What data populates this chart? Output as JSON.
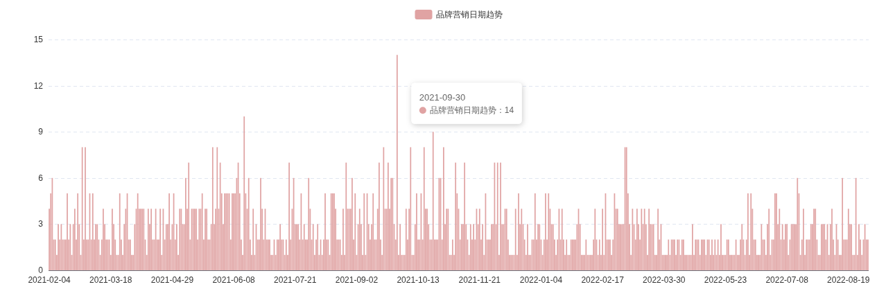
{
  "chart_data": {
    "type": "bar",
    "ylim": [
      0,
      15
    ],
    "yticks": [
      0,
      3,
      6,
      9,
      12,
      15
    ],
    "grid": "y",
    "legend": "top",
    "annotations": [
      "2021-09-30",
      "品牌营销日期趋势：14"
    ],
    "categories": [
      "2021-02-04",
      null,
      null,
      null,
      null,
      null,
      null,
      null,
      null,
      null,
      null,
      null,
      null,
      null,
      null,
      null,
      null,
      null,
      null,
      null,
      null,
      null,
      null,
      null,
      null,
      null,
      null,
      null,
      null,
      null,
      null,
      null,
      null,
      null,
      null,
      null,
      null,
      null,
      null,
      null,
      null,
      "2021-03-18",
      null,
      null,
      null,
      null,
      null,
      null,
      null,
      null,
      null,
      null,
      null,
      null,
      null,
      null,
      null,
      null,
      null,
      null,
      null,
      null,
      null,
      null,
      null,
      null,
      null,
      null,
      null,
      null,
      null,
      null,
      null,
      null,
      null,
      null,
      null,
      null,
      null,
      null,
      null,
      null,
      "2021-04-29",
      null,
      null,
      null,
      null,
      null,
      null,
      null,
      null,
      null,
      null,
      null,
      null,
      null,
      null,
      null,
      null,
      null,
      null,
      null,
      null,
      null,
      null,
      null,
      null,
      null,
      null,
      null,
      null,
      null,
      null,
      null,
      null,
      null,
      null,
      null,
      null,
      null,
      null,
      null,
      null,
      "2021-06-08",
      null,
      null,
      null,
      null,
      null,
      null,
      null,
      null,
      null,
      null,
      null,
      null,
      null,
      null,
      null,
      null,
      null,
      null,
      null,
      null,
      null,
      null,
      null,
      null,
      null,
      null,
      null,
      null,
      null,
      null,
      null,
      null,
      null,
      null,
      null,
      null,
      null,
      null,
      null,
      null,
      "2021-07-21",
      null,
      null,
      null,
      null,
      null,
      null,
      null,
      null,
      null,
      null,
      null,
      null,
      null,
      null,
      null,
      null,
      null,
      null,
      null,
      null,
      null,
      null,
      null,
      null,
      null,
      null,
      null,
      null,
      null,
      null,
      null,
      null,
      null,
      null,
      null,
      null,
      null,
      null,
      null,
      null,
      "2021-09-02",
      null,
      null,
      null,
      null,
      null,
      null,
      null,
      null,
      null,
      null,
      null,
      null,
      null,
      null,
      null,
      null,
      null,
      null,
      null,
      null,
      null,
      null,
      null,
      null,
      null,
      null,
      null,
      null,
      null,
      null,
      null,
      null,
      null,
      null,
      null,
      null,
      null,
      null,
      null,
      null,
      "2021-10-13",
      null,
      null,
      null,
      null,
      null,
      null,
      null,
      null,
      null,
      null,
      null,
      null,
      null,
      null,
      null,
      null,
      null,
      null,
      null,
      null,
      null,
      null,
      null,
      null,
      null,
      null,
      null,
      null,
      null,
      null,
      null,
      null,
      null,
      null,
      null,
      null,
      null,
      null,
      null,
      null,
      "2021-11-21",
      null,
      null,
      null,
      null,
      null,
      null,
      null,
      null,
      null,
      null,
      null,
      null,
      null,
      null,
      null,
      null,
      null,
      null,
      null,
      null,
      null,
      null,
      null,
      null,
      null,
      null,
      null,
      null,
      null,
      null,
      null,
      null,
      null,
      null,
      null,
      null,
      null,
      null,
      null,
      null,
      "2022-01-04",
      null,
      null,
      null,
      null,
      null,
      null,
      null,
      null,
      null,
      null,
      null,
      null,
      null,
      null,
      null,
      null,
      null,
      null,
      null,
      null,
      null,
      null,
      null,
      null,
      null,
      null,
      null,
      null,
      null,
      null,
      null,
      null,
      null,
      null,
      null,
      null,
      null,
      null,
      null,
      null,
      "2022-02-17",
      null,
      null,
      null,
      null,
      null,
      null,
      null,
      null,
      null,
      null,
      null,
      null,
      null,
      null,
      null,
      null,
      null,
      null,
      null,
      null,
      null,
      null,
      null,
      null,
      null,
      null,
      null,
      null,
      null,
      null,
      null,
      null,
      null,
      null,
      null,
      null,
      null,
      null,
      null,
      null,
      "2022-03-30",
      null,
      null,
      null,
      null,
      null,
      null,
      null,
      null,
      null,
      null,
      null,
      null,
      null,
      null,
      null,
      null,
      null,
      null,
      null,
      null,
      null,
      null,
      null,
      null,
      null,
      null,
      null,
      null,
      null,
      null,
      null,
      null,
      null,
      null,
      null,
      null,
      null,
      null,
      null,
      null,
      "2022-05-23",
      null,
      null,
      null,
      null,
      null,
      null,
      null,
      null,
      null,
      null,
      null,
      null,
      null,
      null,
      null,
      null,
      null,
      null,
      null,
      null,
      null,
      null,
      null,
      null,
      null,
      null,
      null,
      null,
      null,
      null,
      null,
      null,
      null,
      null,
      null,
      null,
      null,
      null,
      null,
      null,
      "2022-07-08",
      null,
      null,
      null,
      null,
      null,
      null,
      null,
      null,
      null,
      null,
      null,
      null,
      null,
      null,
      null,
      null,
      null,
      null,
      null,
      null,
      null,
      null,
      null,
      null,
      null,
      null,
      null,
      null,
      null,
      null,
      null,
      null,
      null,
      null,
      null,
      null,
      null,
      null,
      null,
      null,
      "2022-08-19",
      null,
      null,
      null,
      null,
      null,
      null,
      null,
      null,
      null,
      null,
      null,
      null,
      null
    ],
    "series": [
      {
        "name": "品牌营销日期趋势",
        "color": "#e0a3a3",
        "values": [
          4,
          5,
          6,
          2,
          2,
          1,
          3,
          2,
          3,
          2,
          2,
          2,
          5,
          2,
          3,
          1,
          3,
          4,
          2,
          5,
          3,
          1,
          8,
          2,
          8,
          2,
          2,
          5,
          2,
          5,
          2,
          3,
          3,
          2,
          1,
          2,
          4,
          3,
          2,
          2,
          2,
          1,
          4,
          3,
          2,
          1,
          1,
          5,
          2,
          1,
          3,
          4,
          5,
          2,
          2,
          1,
          1,
          3,
          4,
          5,
          4,
          4,
          4,
          4,
          2,
          1,
          4,
          3,
          4,
          2,
          2,
          4,
          2,
          2,
          4,
          1,
          4,
          2,
          3,
          3,
          5,
          2,
          3,
          5,
          2,
          3,
          1,
          4,
          4,
          3,
          3,
          6,
          4,
          7,
          2,
          4,
          4,
          4,
          4,
          2,
          4,
          4,
          5,
          2,
          4,
          4,
          2,
          2,
          3,
          8,
          3,
          4,
          8,
          4,
          7,
          5,
          3,
          5,
          5,
          5,
          5,
          2,
          5,
          5,
          5,
          6,
          7,
          5,
          2,
          1,
          10,
          5,
          4,
          6,
          2,
          1,
          4,
          1,
          3,
          2,
          2,
          6,
          4,
          2,
          4,
          2,
          2,
          2,
          1,
          1,
          2,
          1,
          2,
          2,
          3,
          2,
          2,
          1,
          2,
          1,
          7,
          2,
          4,
          6,
          3,
          3,
          3,
          2,
          5,
          2,
          3,
          2,
          2,
          6,
          4,
          2,
          3,
          1,
          2,
          3,
          1,
          2,
          1,
          2,
          5,
          2,
          2,
          1,
          5,
          5,
          5,
          4,
          2,
          2,
          2,
          1,
          4,
          1,
          7,
          4,
          4,
          4,
          6,
          2,
          5,
          1,
          3,
          4,
          3,
          1,
          5,
          1,
          5,
          3,
          2,
          3,
          5,
          2,
          2,
          4,
          7,
          2,
          1,
          8,
          4,
          4,
          7,
          4,
          6,
          6,
          3,
          2,
          14,
          1,
          3,
          1,
          1,
          1,
          4,
          2,
          4,
          8,
          1,
          1,
          3,
          5,
          2,
          2,
          5,
          2,
          8,
          4,
          4,
          3,
          2,
          2,
          9,
          2,
          2,
          2,
          6,
          6,
          2,
          8,
          3,
          4,
          4,
          1,
          1,
          2,
          1,
          7,
          5,
          4,
          2,
          3,
          3,
          7,
          3,
          2,
          1,
          3,
          2,
          3,
          2,
          4,
          3,
          4,
          2,
          3,
          1,
          5,
          2,
          2,
          2,
          3,
          3,
          7,
          3,
          7,
          1,
          7,
          3,
          3,
          4,
          4,
          2,
          1,
          1,
          1,
          1,
          4,
          1,
          5,
          3,
          4,
          3,
          2,
          1,
          3,
          1,
          1,
          2,
          2,
          5,
          2,
          3,
          3,
          2,
          1,
          2,
          5,
          2,
          5,
          4,
          3,
          3,
          2,
          1,
          2,
          4,
          2,
          4,
          2,
          1,
          2,
          1,
          1,
          2,
          2,
          2,
          2,
          3,
          4,
          3,
          1,
          1,
          1,
          2,
          1,
          1,
          1,
          1,
          2,
          4,
          2,
          1,
          2,
          1,
          4,
          1,
          5,
          2,
          2,
          2,
          1,
          2,
          5,
          4,
          4,
          3,
          3,
          3,
          3,
          8,
          8,
          5,
          3,
          1,
          4,
          3,
          2,
          4,
          3,
          2,
          4,
          3,
          4,
          3,
          1,
          4,
          3,
          3,
          3,
          1,
          1,
          4,
          2,
          3,
          1,
          1,
          1,
          1,
          2,
          1,
          2,
          2,
          2,
          1,
          2,
          2,
          1,
          2,
          2,
          1,
          1,
          1,
          1,
          1,
          3,
          1,
          2,
          2,
          2,
          1,
          2,
          2,
          2,
          1,
          2,
          2,
          1,
          2,
          1,
          2,
          1,
          2,
          1,
          3,
          1,
          1,
          1,
          2,
          2,
          1,
          1,
          1,
          1,
          2,
          1,
          1,
          2,
          3,
          2,
          1,
          2,
          5,
          1,
          5,
          4,
          2,
          2,
          1,
          1,
          1,
          3,
          2,
          2,
          1,
          3,
          4,
          1,
          2,
          2,
          5,
          5,
          3,
          4,
          2,
          3,
          2,
          3,
          3,
          1,
          2,
          3,
          3,
          3,
          3,
          6,
          5,
          1,
          2,
          4,
          1,
          2,
          2,
          2,
          3,
          3,
          4,
          4,
          2,
          1,
          1,
          3,
          3,
          3,
          2,
          3,
          1,
          3,
          4,
          2,
          1,
          3,
          2,
          1,
          1,
          6,
          2,
          2,
          2,
          4,
          3,
          3,
          1,
          1,
          6,
          1,
          3,
          2,
          1,
          2,
          3,
          2,
          2
        ]
      }
    ]
  }
}
